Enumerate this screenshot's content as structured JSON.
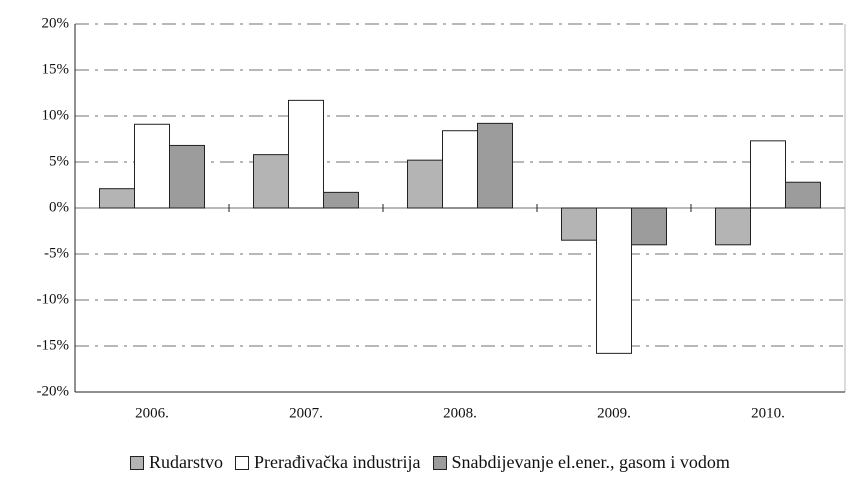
{
  "chart_data": {
    "type": "bar",
    "categories": [
      "2006.",
      "2007.",
      "2008.",
      "2009.",
      "2010."
    ],
    "series": [
      {
        "name": "Rudarstvo",
        "color": "#b4b4b4",
        "values": [
          2.1,
          5.8,
          5.2,
          -3.5,
          -4.0
        ]
      },
      {
        "name": "Prerađivačka industrija",
        "color": "#ffffff",
        "values": [
          9.1,
          11.7,
          8.4,
          -15.8,
          7.3
        ]
      },
      {
        "name": "Snabdijevanje el.ener., gasom i vodom",
        "color": "#9c9c9c",
        "values": [
          6.8,
          1.7,
          9.2,
          -4.0,
          2.8
        ]
      }
    ],
    "ylim": [
      -20,
      20
    ],
    "yticks": [
      {
        "value": -20,
        "label": "-20%"
      },
      {
        "value": -15,
        "label": "-15%"
      },
      {
        "value": -10,
        "label": "-10%"
      },
      {
        "value": -5,
        "label": "-5%"
      },
      {
        "value": 0,
        "label": "0%"
      },
      {
        "value": 5,
        "label": "5%"
      },
      {
        "value": 10,
        "label": "10%"
      },
      {
        "value": 15,
        "label": "15%"
      },
      {
        "value": 20,
        "label": "20%"
      }
    ],
    "grid": true,
    "legend": "bottom"
  }
}
